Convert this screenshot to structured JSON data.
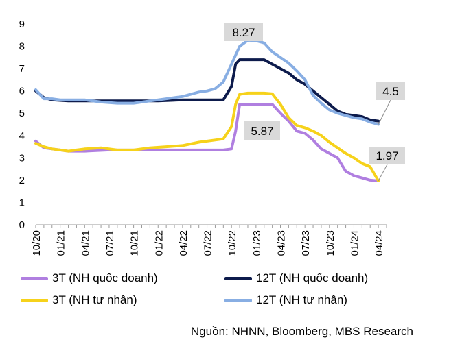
{
  "chart_data": {
    "type": "line",
    "title": "",
    "xlabel": "",
    "ylabel": "",
    "ylim": [
      0,
      9
    ],
    "yticks": [
      "0",
      "1",
      "2",
      "3",
      "4",
      "5",
      "6",
      "7",
      "8",
      "9"
    ],
    "xticks": [
      "10/20",
      "01/21",
      "04/21",
      "07/21",
      "10/21",
      "01/22",
      "04/22",
      "07/22",
      "10/22",
      "01/23",
      "04/23",
      "07/23",
      "10/23",
      "01/24",
      "04/24"
    ],
    "x_month_range": [
      0,
      43
    ],
    "series": [
      {
        "name": "3T (NH quốc doanh)",
        "color": "#b07fe0",
        "points": [
          [
            0,
            3.75
          ],
          [
            1,
            3.45
          ],
          [
            2,
            3.4
          ],
          [
            3,
            3.35
          ],
          [
            4,
            3.3
          ],
          [
            6,
            3.3
          ],
          [
            9,
            3.35
          ],
          [
            12,
            3.35
          ],
          [
            15,
            3.35
          ],
          [
            18,
            3.35
          ],
          [
            21,
            3.35
          ],
          [
            23,
            3.35
          ],
          [
            24,
            3.4
          ],
          [
            24.5,
            4.2
          ],
          [
            25,
            5.4
          ],
          [
            27,
            5.4
          ],
          [
            28,
            5.4
          ],
          [
            29,
            5.4
          ],
          [
            30,
            5.0
          ],
          [
            31,
            4.65
          ],
          [
            32,
            4.2
          ],
          [
            33,
            4.1
          ],
          [
            34,
            3.8
          ],
          [
            35,
            3.4
          ],
          [
            36,
            3.2
          ],
          [
            37,
            3.0
          ],
          [
            38,
            2.4
          ],
          [
            39,
            2.2
          ],
          [
            40,
            2.1
          ],
          [
            41,
            2.0
          ],
          [
            42,
            1.97
          ]
        ]
      },
      {
        "name": "12T (NH quốc doanh)",
        "color": "#0d1b4c",
        "points": [
          [
            0,
            6.0
          ],
          [
            1,
            5.7
          ],
          [
            2,
            5.6
          ],
          [
            4,
            5.55
          ],
          [
            6,
            5.55
          ],
          [
            9,
            5.55
          ],
          [
            12,
            5.55
          ],
          [
            15,
            5.55
          ],
          [
            18,
            5.6
          ],
          [
            21,
            5.6
          ],
          [
            23,
            5.6
          ],
          [
            24,
            6.2
          ],
          [
            24.5,
            7.2
          ],
          [
            25,
            7.4
          ],
          [
            27,
            7.4
          ],
          [
            28,
            7.4
          ],
          [
            29,
            7.2
          ],
          [
            30,
            7.0
          ],
          [
            31,
            6.8
          ],
          [
            32,
            6.5
          ],
          [
            33,
            6.3
          ],
          [
            34,
            6.0
          ],
          [
            35,
            5.7
          ],
          [
            36,
            5.4
          ],
          [
            37,
            5.1
          ],
          [
            38,
            4.95
          ],
          [
            39,
            4.9
          ],
          [
            40,
            4.85
          ],
          [
            41,
            4.7
          ],
          [
            42,
            4.65
          ]
        ]
      },
      {
        "name": "3T (NH tư nhân)",
        "color": "#f6d21b",
        "points": [
          [
            0,
            3.65
          ],
          [
            1,
            3.5
          ],
          [
            2,
            3.4
          ],
          [
            3,
            3.35
          ],
          [
            4,
            3.3
          ],
          [
            5,
            3.35
          ],
          [
            6,
            3.4
          ],
          [
            8,
            3.45
          ],
          [
            10,
            3.35
          ],
          [
            12,
            3.35
          ],
          [
            14,
            3.45
          ],
          [
            16,
            3.5
          ],
          [
            18,
            3.55
          ],
          [
            20,
            3.7
          ],
          [
            22,
            3.8
          ],
          [
            23,
            3.85
          ],
          [
            24,
            4.4
          ],
          [
            24.5,
            5.4
          ],
          [
            25,
            5.85
          ],
          [
            26,
            5.9
          ],
          [
            27,
            5.9
          ],
          [
            28,
            5.9
          ],
          [
            29,
            5.87
          ],
          [
            30,
            5.4
          ],
          [
            31,
            4.8
          ],
          [
            32,
            4.45
          ],
          [
            33,
            4.35
          ],
          [
            34,
            4.2
          ],
          [
            35,
            4.0
          ],
          [
            36,
            3.7
          ],
          [
            37,
            3.45
          ],
          [
            38,
            3.2
          ],
          [
            39,
            3.0
          ],
          [
            40,
            2.75
          ],
          [
            41,
            2.6
          ],
          [
            42,
            1.97
          ]
        ]
      },
      {
        "name": "12T (NH tư nhân)",
        "color": "#88aee3",
        "points": [
          [
            0,
            6.05
          ],
          [
            1,
            5.65
          ],
          [
            2,
            5.65
          ],
          [
            3,
            5.6
          ],
          [
            4,
            5.6
          ],
          [
            5,
            5.6
          ],
          [
            6,
            5.6
          ],
          [
            8,
            5.5
          ],
          [
            10,
            5.45
          ],
          [
            12,
            5.45
          ],
          [
            14,
            5.55
          ],
          [
            16,
            5.65
          ],
          [
            18,
            5.75
          ],
          [
            20,
            5.95
          ],
          [
            21,
            6.0
          ],
          [
            22,
            6.1
          ],
          [
            23,
            6.4
          ],
          [
            24,
            7.2
          ],
          [
            25,
            8.0
          ],
          [
            26,
            8.27
          ],
          [
            27,
            8.25
          ],
          [
            28,
            8.15
          ],
          [
            29,
            7.75
          ],
          [
            30,
            7.5
          ],
          [
            31,
            7.25
          ],
          [
            32,
            6.9
          ],
          [
            33,
            6.5
          ],
          [
            34,
            5.8
          ],
          [
            35,
            5.45
          ],
          [
            36,
            5.15
          ],
          [
            37,
            5.0
          ],
          [
            38,
            4.9
          ],
          [
            39,
            4.8
          ],
          [
            40,
            4.75
          ],
          [
            41,
            4.6
          ],
          [
            42,
            4.5
          ]
        ]
      }
    ],
    "annotations": [
      {
        "label": "8.27",
        "series": "12T (NH tư nhân)"
      },
      {
        "label": "5.87",
        "series": "3T (NH tư nhân)"
      },
      {
        "label": "4.5",
        "series": "12T (NH tư nhân)"
      },
      {
        "label": "1.97",
        "series": "3T (NH tư nhân)"
      }
    ]
  },
  "legend": {
    "items": [
      {
        "label": "3T (NH quốc doanh)",
        "color": "#b07fe0"
      },
      {
        "label": "12T (NH quốc doanh)",
        "color": "#0d1b4c"
      },
      {
        "label": "3T (NH tư nhân)",
        "color": "#f6d21b"
      },
      {
        "label": "12T (NH tư nhân)",
        "color": "#88aee3"
      }
    ]
  },
  "source_text": "Nguồn: NHNN, Bloomberg, MBS Research"
}
